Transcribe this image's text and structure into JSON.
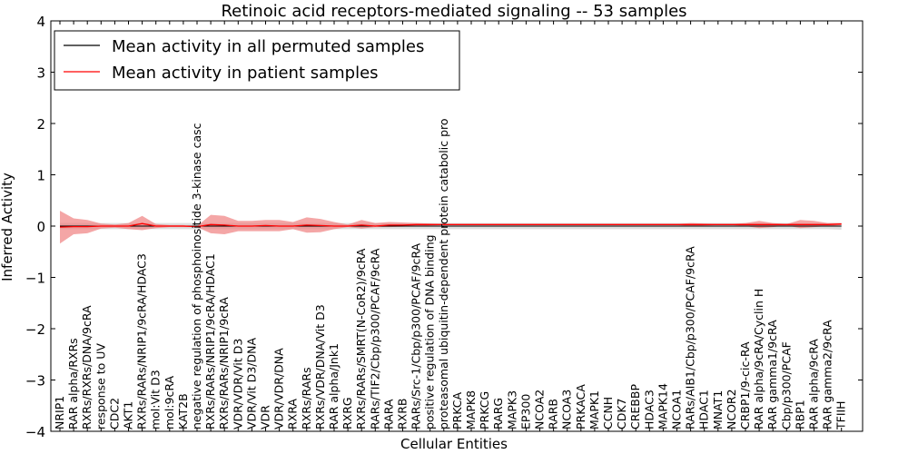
{
  "chart_data": {
    "type": "line",
    "title": "Retinoic acid receptors-mediated signaling -- 53 samples",
    "xlabel": "Cellular Entities",
    "ylabel": "Inferred Activity",
    "ylim": [
      -4,
      4
    ],
    "yticks": [
      -4,
      -3,
      -2,
      -1,
      0,
      1,
      2,
      3,
      4
    ],
    "ytick_labels": [
      "−4",
      "−3",
      "−2",
      "−1",
      "0",
      "1",
      "2",
      "3",
      "4"
    ],
    "grid": false,
    "legend_position": "top-left",
    "categories": [
      "NRIP1",
      "RAR alpha/RXRs",
      "RXRs/RXRs/DNA/9cRA",
      "response to UV",
      "CDC2",
      "AKT1",
      "RXRs/RARs/NRIP1/9cRA/HDAC3",
      "mol:Vit D3",
      "mol:9cRA",
      "KAT2B",
      "negative regulation of phosphoinositide 3-kinase casc",
      "RXRs/RARs/NRIP1/9cRA/HDAC1",
      "RXRs/RARs/NRIP1/9cRA",
      "VDR/VDR/Vit D3",
      "VDR/Vit D3/DNA",
      "VDR",
      "VDR/VDR/DNA",
      "RXRA",
      "RXRs/RARs",
      "RXRs/VDR/DNA/Vit D3",
      "RAR alpha/Jnk1",
      "RXRG",
      "RXRs/RARs/SMRT(N-CoR2)/9cRA",
      "RARs/TIF2/Cbp/p300/PCAF/9cRA",
      "RARA",
      "RXRB",
      "RARs/Src-1/Cbp/p300/PCAF/9cRA",
      "positive regulation of DNA binding",
      "proteasomal ubiquitin-dependent protein catabolic pro",
      "PRKCA",
      "MAPK8",
      "PRKCG",
      "RARG",
      "MAPK3",
      "EP300",
      "NCOA2",
      "RARB",
      "NCOA3",
      "PRKACA",
      "MAPK1",
      "CCNH",
      "CDK7",
      "CREBBP",
      "HDAC3",
      "MAPK14",
      "NCOA1",
      "RARs/AIB1/Cbp/p300/PCAF/9cRA",
      "HDAC1",
      "MNAT1",
      "NCOR2",
      "CRBP1/9-cic-RA",
      "RAR alpha/9cRA/Cyclin H",
      "RAR gamma1/9cRA",
      "Cbp/p300/PCAF",
      "RBP1",
      "RAR alpha/9cRA",
      "RAR gamma2/9cRA",
      "TFIIH"
    ],
    "series": [
      {
        "name": "Mean activity in all permuted samples",
        "color": "#000000",
        "values": [
          0.0,
          0.0,
          0.0,
          0.0,
          0.0,
          0.0,
          0.0,
          0.0,
          0.0,
          0.0,
          0.0,
          0.0,
          0.0,
          0.0,
          0.0,
          0.0,
          0.0,
          0.0,
          0.0,
          0.0,
          0.0,
          0.0,
          0.0,
          0.0,
          0.0,
          0.0,
          0.0,
          0.0,
          0.0,
          0.0,
          0.0,
          0.0,
          0.0,
          0.0,
          0.0,
          0.0,
          0.0,
          0.0,
          0.0,
          0.0,
          0.0,
          0.0,
          0.0,
          0.0,
          0.0,
          0.0,
          0.0,
          0.0,
          0.0,
          0.0,
          0.0,
          0.0,
          0.0,
          0.0,
          0.0,
          0.0,
          0.0,
          0.0
        ],
        "band_upper": [
          0.06,
          0.06,
          0.06,
          0.06,
          0.06,
          0.06,
          0.06,
          0.06,
          0.06,
          0.06,
          0.06,
          0.06,
          0.06,
          0.06,
          0.06,
          0.06,
          0.06,
          0.06,
          0.06,
          0.06,
          0.06,
          0.06,
          0.06,
          0.06,
          0.06,
          0.06,
          0.06,
          0.06,
          0.06,
          0.06,
          0.06,
          0.06,
          0.06,
          0.06,
          0.06,
          0.06,
          0.06,
          0.06,
          0.06,
          0.06,
          0.06,
          0.06,
          0.06,
          0.06,
          0.06,
          0.06,
          0.06,
          0.06,
          0.06,
          0.06,
          0.06,
          0.06,
          0.06,
          0.06,
          0.06,
          0.06,
          0.06,
          0.06
        ],
        "band_lower": [
          -0.06,
          -0.06,
          -0.06,
          -0.06,
          -0.06,
          -0.06,
          -0.06,
          -0.06,
          -0.06,
          -0.06,
          -0.06,
          -0.06,
          -0.06,
          -0.06,
          -0.06,
          -0.06,
          -0.06,
          -0.06,
          -0.06,
          -0.06,
          -0.06,
          -0.06,
          -0.06,
          -0.06,
          -0.06,
          -0.06,
          -0.06,
          -0.06,
          -0.06,
          -0.06,
          -0.06,
          -0.06,
          -0.06,
          -0.06,
          -0.06,
          -0.06,
          -0.06,
          -0.06,
          -0.06,
          -0.06,
          -0.06,
          -0.06,
          -0.06,
          -0.06,
          -0.06,
          -0.06,
          -0.06,
          -0.06,
          -0.06,
          -0.06,
          -0.06,
          -0.06,
          -0.06,
          -0.06,
          -0.06,
          -0.06,
          -0.06,
          -0.07
        ],
        "band_color": "#cccccc"
      },
      {
        "name": "Mean activity in patient samples",
        "color": "#ff0000",
        "values": [
          -0.02,
          -0.01,
          -0.01,
          0.0,
          0.0,
          0.0,
          0.05,
          0.0,
          0.0,
          0.0,
          -0.01,
          0.03,
          0.02,
          0.0,
          0.0,
          0.01,
          0.0,
          0.0,
          0.02,
          0.01,
          0.0,
          0.0,
          0.02,
          0.0,
          0.02,
          0.02,
          0.03,
          0.03,
          0.03,
          0.03,
          0.03,
          0.03,
          0.03,
          0.03,
          0.03,
          0.03,
          0.03,
          0.03,
          0.03,
          0.03,
          0.03,
          0.03,
          0.03,
          0.03,
          0.03,
          0.03,
          0.03,
          0.03,
          0.03,
          0.03,
          0.03,
          0.03,
          0.03,
          0.03,
          0.03,
          0.03,
          0.03,
          0.04
        ],
        "band_upper": [
          0.3,
          0.15,
          0.12,
          0.05,
          0.03,
          0.06,
          0.2,
          0.04,
          0.02,
          0.02,
          0.0,
          0.22,
          0.2,
          0.1,
          0.1,
          0.12,
          0.12,
          0.08,
          0.17,
          0.14,
          0.08,
          0.03,
          0.12,
          0.06,
          0.08,
          0.07,
          0.06,
          0.05,
          0.04,
          0.04,
          0.04,
          0.04,
          0.04,
          0.04,
          0.04,
          0.04,
          0.04,
          0.04,
          0.04,
          0.04,
          0.04,
          0.04,
          0.04,
          0.04,
          0.04,
          0.04,
          0.06,
          0.05,
          0.04,
          0.04,
          0.06,
          0.1,
          0.06,
          0.04,
          0.12,
          0.1,
          0.06,
          0.06
        ],
        "band_lower": [
          -0.34,
          -0.16,
          -0.14,
          -0.05,
          -0.03,
          -0.06,
          -0.08,
          -0.04,
          -0.02,
          -0.02,
          -0.02,
          -0.14,
          -0.16,
          -0.1,
          -0.1,
          -0.1,
          -0.1,
          -0.06,
          -0.13,
          -0.12,
          -0.06,
          -0.02,
          -0.05,
          -0.02,
          -0.02,
          -0.01,
          0.0,
          0.01,
          0.02,
          0.02,
          0.02,
          0.02,
          0.02,
          0.02,
          0.02,
          0.02,
          0.02,
          0.02,
          0.02,
          0.02,
          0.02,
          0.02,
          0.02,
          0.02,
          0.02,
          0.02,
          0.0,
          0.01,
          0.02,
          0.02,
          0.0,
          -0.04,
          -0.02,
          0.01,
          -0.04,
          -0.02,
          0.0,
          0.02
        ],
        "band_color": "#f08080"
      }
    ]
  }
}
